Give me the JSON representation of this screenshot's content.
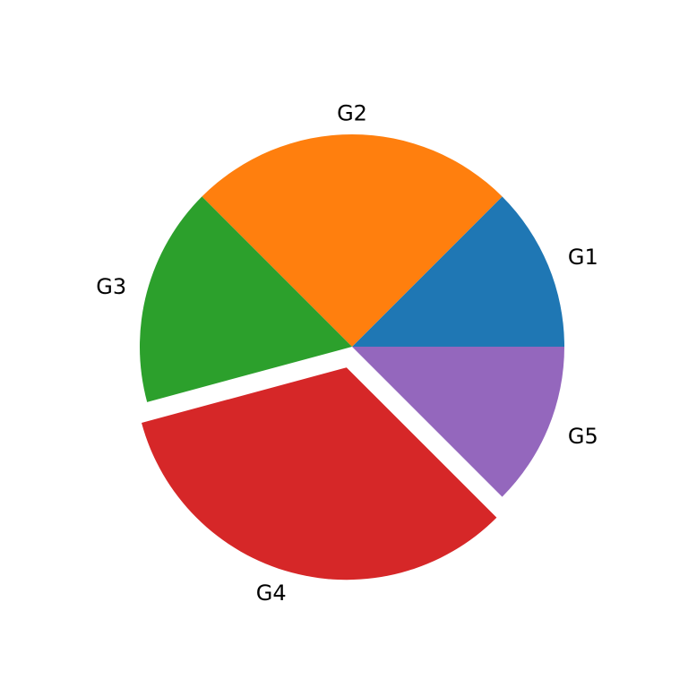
{
  "chart_data": {
    "type": "pie",
    "title": "",
    "categories": [
      "G1",
      "G2",
      "G3",
      "G4",
      "G5"
    ],
    "values": [
      12.5,
      25,
      16.7,
      33.3,
      12.5
    ],
    "colors": [
      "#1f77b4",
      "#ff7f0e",
      "#2ca02c",
      "#d62728",
      "#9467bd"
    ],
    "exploded": [
      "G4"
    ],
    "start_angle_deg": 0,
    "direction": "counterclockwise",
    "legend": "none"
  }
}
